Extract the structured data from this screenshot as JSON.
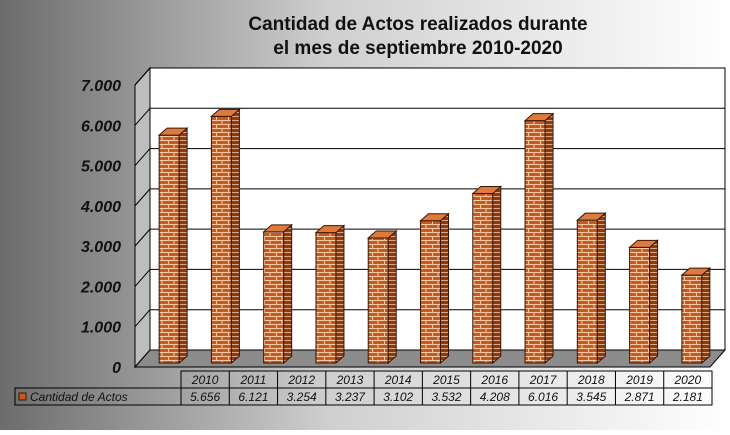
{
  "chart_data": {
    "type": "bar",
    "title_line1": "Cantidad de Actos realizados durante",
    "title_line2": "el mes de septiembre 2010-2020",
    "categories": [
      "2010",
      "2011",
      "2012",
      "2013",
      "2014",
      "2015",
      "2016",
      "2017",
      "2018",
      "2019",
      "2020"
    ],
    "series": [
      {
        "name": "Cantidad de Actos",
        "values": [
          5656,
          6121,
          3254,
          3237,
          3102,
          3532,
          4208,
          6016,
          3545,
          2871,
          2181
        ],
        "labels": [
          "5.656",
          "6.121",
          "3.254",
          "3.237",
          "3.102",
          "3.532",
          "4.208",
          "6.016",
          "3.545",
          "2.871",
          "2.181"
        ]
      }
    ],
    "y_ticks": [
      "0",
      "1.000",
      "2.000",
      "3.000",
      "4.000",
      "5.000",
      "6.000",
      "7.000"
    ],
    "ylim": [
      0,
      7000
    ],
    "grid": true,
    "legend_placement": "bottom-left data table",
    "colors": {
      "bar_face": "#c95a1e",
      "bar_side": "#8e3a0f",
      "bar_top": "#e07a3a",
      "mortar": "#f0c9a8",
      "background_dark": "#7a7a7a",
      "background_light": "#ffffff"
    }
  }
}
